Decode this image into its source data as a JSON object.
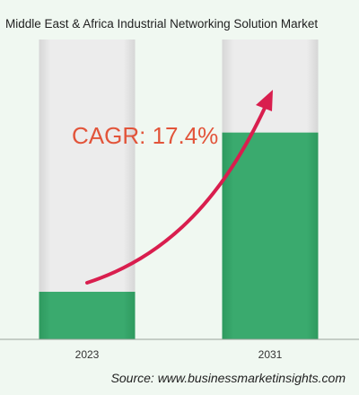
{
  "chart_data": {
    "type": "bar",
    "title": "Middle East & Africa Industrial Networking Solution Market",
    "categories": [
      "2023",
      "2031"
    ],
    "values": [
      23,
      100
    ],
    "ylim": [
      0,
      145
    ],
    "grid": false,
    "annotation": "CAGR: 17.4%",
    "source": "Source: www.businessmarketinsights.com"
  },
  "colors": {
    "background": "#f0f8f1",
    "bar_fill": "#3aaa6e",
    "bar_track": "#e8e8e8",
    "arrow": "#d91e4e",
    "annotation": "#e2543a"
  }
}
